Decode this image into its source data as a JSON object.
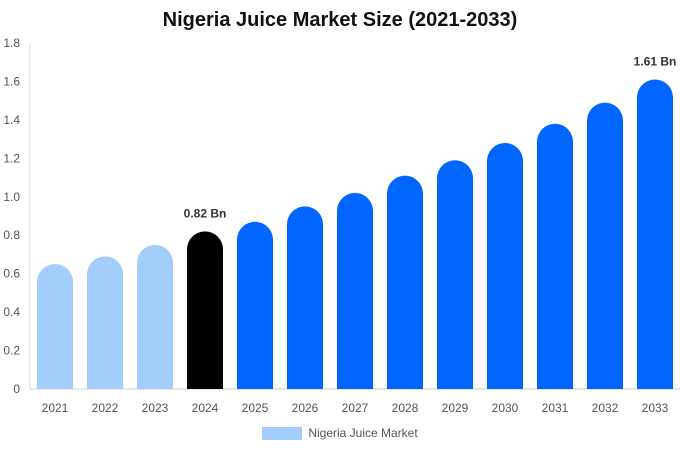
{
  "chart_data": {
    "type": "bar",
    "title": "Nigeria Juice Market Size (2021-2033)",
    "xlabel": "",
    "ylabel": "",
    "categories": [
      "2021",
      "2022",
      "2023",
      "2024",
      "2025",
      "2026",
      "2027",
      "2028",
      "2029",
      "2030",
      "2031",
      "2032",
      "2033"
    ],
    "series": [
      {
        "name": "Nigeria Juice Market",
        "values": [
          0.65,
          0.69,
          0.75,
          0.82,
          0.87,
          0.95,
          1.02,
          1.11,
          1.19,
          1.28,
          1.38,
          1.49,
          1.61
        ]
      }
    ],
    "ylim": [
      0,
      1.8
    ],
    "yticks": [
      "0",
      "0.2",
      "0.4",
      "0.6",
      "0.8",
      "1.0",
      "1.2",
      "1.4",
      "1.6",
      "1.8"
    ],
    "data_labels": [
      {
        "category": "2024",
        "text": "0.82 Bn"
      },
      {
        "category": "2033",
        "text": "1.61 Bn"
      }
    ],
    "bar_colors": {
      "historical": "#a3cdfb",
      "base_year": "#000000",
      "forecast": "#0066ff"
    },
    "historical_years": [
      "2021",
      "2022",
      "2023"
    ],
    "base_year": "2024",
    "legend": {
      "position": "bottom-center",
      "label": "Nigeria Juice Market",
      "color": "#a3cdfb"
    },
    "grid": false
  }
}
